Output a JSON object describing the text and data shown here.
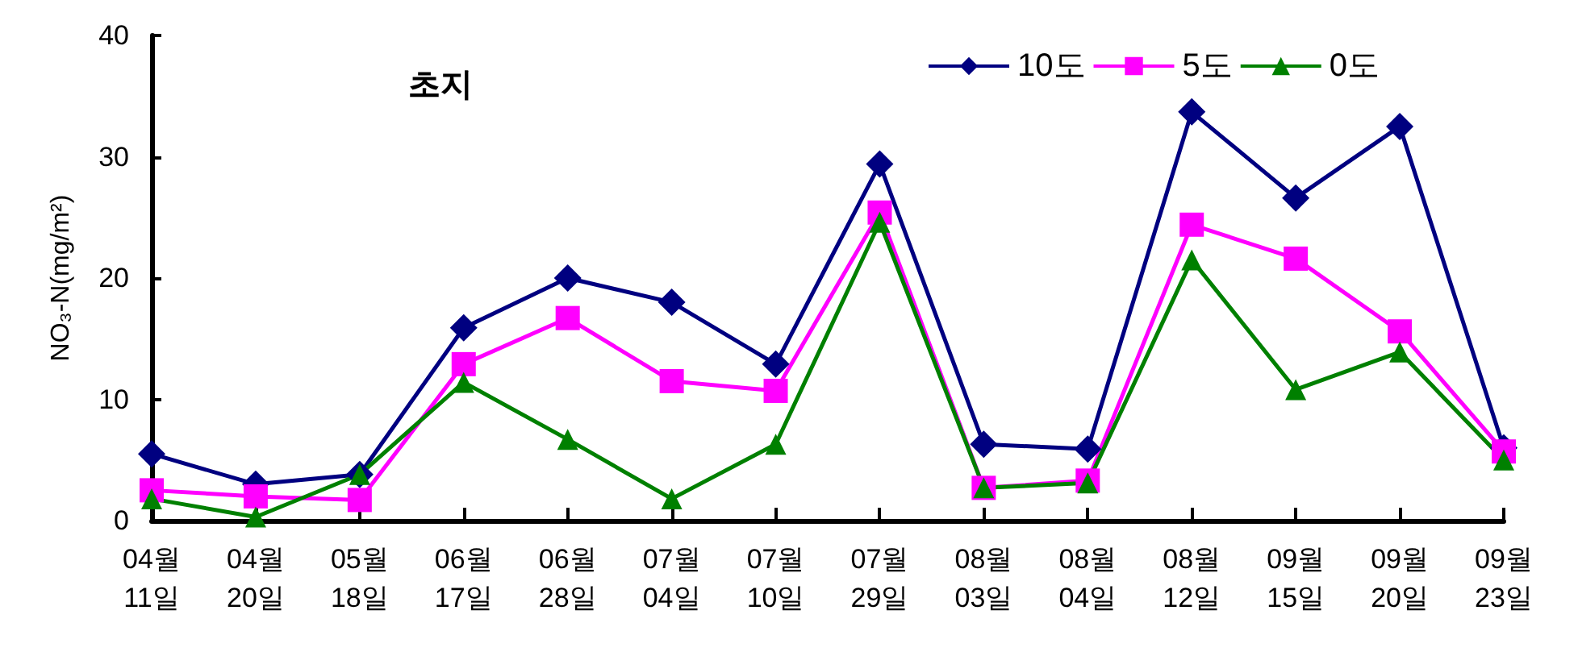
{
  "chart_data": {
    "type": "line",
    "title": "초지",
    "ylabel": "NO₃-N(mg/m²)",
    "categories": [
      "04월\n11일",
      "04월\n20일",
      "05월\n18일",
      "06월\n17일",
      "06월\n28일",
      "07월\n04일",
      "07월\n10일",
      "07월\n29일",
      "08월\n03일",
      "08월\n04일",
      "08월\n12일",
      "09월\n15일",
      "09월\n20일",
      "09월\n23일"
    ],
    "series": [
      {
        "name": "10도",
        "color": "#000080",
        "marker": "diamond",
        "values": [
          5.5,
          3.0,
          3.8,
          15.9,
          20.0,
          18.0,
          12.9,
          29.4,
          6.3,
          5.9,
          33.7,
          26.6,
          32.5,
          6.0
        ]
      },
      {
        "name": "5도",
        "color": "#ff00ff",
        "marker": "square",
        "values": [
          2.5,
          2.0,
          1.7,
          12.9,
          16.7,
          11.5,
          10.7,
          25.4,
          2.7,
          3.3,
          24.4,
          21.6,
          15.6,
          5.7
        ]
      },
      {
        "name": "0도",
        "color": "#008000",
        "marker": "triangle",
        "values": [
          1.8,
          0.3,
          3.8,
          11.4,
          6.7,
          1.8,
          6.3,
          24.6,
          2.7,
          3.1,
          21.5,
          10.8,
          13.9,
          5.0
        ]
      }
    ],
    "ylim": [
      0,
      40
    ],
    "yticks": [
      0,
      10,
      20,
      30,
      40
    ],
    "grid": false,
    "legend": "top right",
    "line_style": "solid"
  }
}
